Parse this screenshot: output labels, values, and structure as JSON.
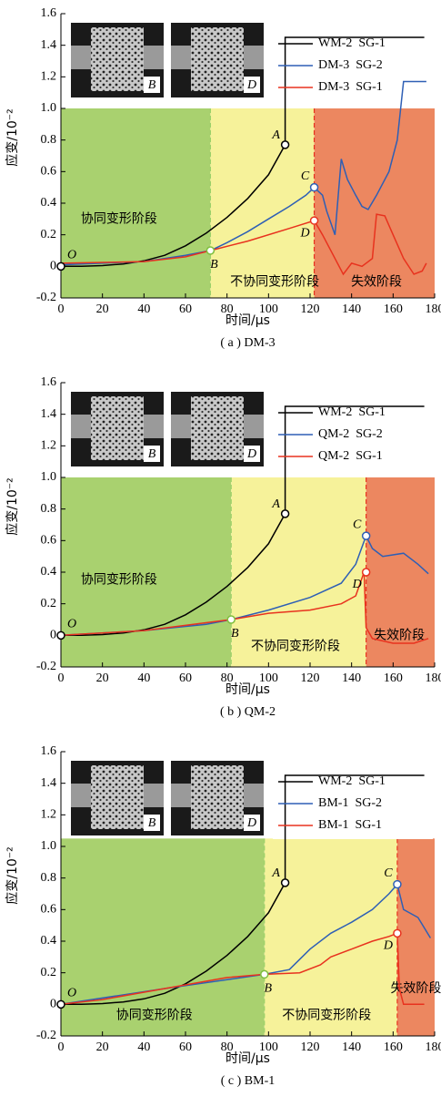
{
  "chart_data": [
    {
      "type": "line",
      "caption": "( a ) DM-3",
      "x_label": "时间/μs",
      "y_label": "应变/10⁻²",
      "xlim": [
        0,
        180
      ],
      "ylim": [
        -0.2,
        1.6
      ],
      "xticks": [
        0,
        20,
        40,
        60,
        80,
        100,
        120,
        140,
        160,
        180
      ],
      "yticks": [
        -0.2,
        0,
        0.2,
        0.4,
        0.6,
        0.8,
        {
          "value": 1,
          "label": "1.0"
        },
        1.2,
        1.4,
        1.6
      ],
      "region_top": 1.0,
      "regions": [
        {
          "label": "协同变形阶段",
          "x0": 0,
          "x1": 72,
          "color": "#a9d16f"
        },
        {
          "label": "不协同变形阶段",
          "x0": 72,
          "x1": 122,
          "color": "#f6f29a"
        },
        {
          "label": "失效阶段",
          "x0": 122,
          "x1": 180,
          "color": "#ec8760"
        }
      ],
      "inset_labels": [
        "B",
        "D"
      ],
      "series": [
        {
          "name": "WM-2  SG-1",
          "color": "#000000",
          "x": [
            0,
            10,
            20,
            30,
            40,
            50,
            60,
            70,
            80,
            90,
            100,
            108,
            108,
            175
          ],
          "values": [
            0,
            0,
            0.005,
            0.015,
            0.035,
            0.07,
            0.13,
            0.21,
            0.31,
            0.43,
            0.58,
            0.77,
            1.45,
            1.45
          ]
        },
        {
          "name": "DM-3  SG-2",
          "color": "#2e5fb5",
          "x": [
            0,
            40,
            60,
            72,
            80,
            90,
            100,
            110,
            118,
            122,
            126,
            128,
            132,
            135,
            138,
            142,
            145,
            148,
            152,
            158,
            162,
            165,
            176
          ],
          "values": [
            0.01,
            0.03,
            0.07,
            0.1,
            0.15,
            0.22,
            0.3,
            0.38,
            0.45,
            0.5,
            0.45,
            0.35,
            0.2,
            0.68,
            0.55,
            0.45,
            0.38,
            0.36,
            0.45,
            0.6,
            0.8,
            1.17,
            1.17
          ]
        },
        {
          "name": "DM-3  SG-1",
          "color": "#e8321e",
          "x": [
            0,
            40,
            60,
            72,
            90,
            110,
            122,
            126,
            132,
            136,
            140,
            145,
            150,
            152,
            156,
            160,
            165,
            170,
            174,
            176
          ],
          "values": [
            0.02,
            0.03,
            0.06,
            0.1,
            0.16,
            0.24,
            0.29,
            0.2,
            0.05,
            -0.05,
            0.02,
            0,
            0.05,
            0.33,
            0.32,
            0.2,
            0.05,
            -0.05,
            -0.03,
            0.02
          ]
        }
      ],
      "points": [
        {
          "label": "O",
          "x": 0,
          "y": 0,
          "color": "#000000"
        },
        {
          "label": "A",
          "x": 108,
          "y": 0.77,
          "color": "#000000"
        },
        {
          "label": "B",
          "x": 72,
          "y": 0.1,
          "color": "#7fbf3f"
        },
        {
          "label": "C",
          "x": 122,
          "y": 0.5,
          "color": "#2e5fb5"
        },
        {
          "label": "D",
          "x": 122,
          "y": 0.29,
          "color": "#e8321e"
        }
      ]
    },
    {
      "type": "line",
      "caption": "( b ) QM-2",
      "x_label": "时间/μs",
      "y_label": "应变/10⁻²",
      "xlim": [
        0,
        180
      ],
      "ylim": [
        -0.2,
        1.6
      ],
      "xticks": [
        0,
        20,
        40,
        60,
        80,
        100,
        120,
        140,
        160,
        180
      ],
      "yticks": [
        -0.2,
        0,
        0.2,
        0.4,
        0.6,
        0.8,
        {
          "value": 1,
          "label": "1.0"
        },
        1.2,
        1.4,
        1.6
      ],
      "region_top": 1.0,
      "regions": [
        {
          "label": "协同变形阶段",
          "x0": 0,
          "x1": 82,
          "color": "#a9d16f"
        },
        {
          "label": "不协同变形阶段",
          "x0": 82,
          "x1": 147,
          "color": "#f6f29a"
        },
        {
          "label": "失效阶段",
          "x0": 147,
          "x1": 180,
          "color": "#ec8760"
        }
      ],
      "inset_labels": [
        "B",
        "D"
      ],
      "series": [
        {
          "name": "WM-2  SG-1",
          "color": "#000000",
          "x": [
            0,
            10,
            20,
            30,
            40,
            50,
            60,
            70,
            80,
            90,
            100,
            108,
            108,
            175
          ],
          "values": [
            0,
            0,
            0.005,
            0.015,
            0.035,
            0.07,
            0.13,
            0.21,
            0.31,
            0.43,
            0.58,
            0.77,
            1.45,
            1.45
          ]
        },
        {
          "name": "QM-2  SG-2",
          "color": "#2e5fb5",
          "x": [
            0,
            40,
            70,
            82,
            100,
            120,
            135,
            142,
            147,
            150,
            155,
            165,
            172,
            177
          ],
          "values": [
            0,
            0.03,
            0.07,
            0.1,
            0.16,
            0.24,
            0.33,
            0.45,
            0.63,
            0.55,
            0.5,
            0.52,
            0.45,
            0.39
          ]
        },
        {
          "name": "QM-2  SG-1",
          "color": "#e8321e",
          "x": [
            0,
            40,
            82,
            100,
            120,
            135,
            142,
            146,
            147,
            150,
            160,
            170,
            177
          ],
          "values": [
            0,
            0.03,
            0.1,
            0.14,
            0.16,
            0.2,
            0.25,
            0.4,
            0.05,
            -0.02,
            -0.05,
            -0.05,
            -0.02
          ]
        }
      ],
      "points": [
        {
          "label": "O",
          "x": 0,
          "y": 0,
          "color": "#000000"
        },
        {
          "label": "A",
          "x": 108,
          "y": 0.77,
          "color": "#000000"
        },
        {
          "label": "B",
          "x": 82,
          "y": 0.1,
          "color": "#7fbf3f"
        },
        {
          "label": "C",
          "x": 147,
          "y": 0.63,
          "color": "#2e5fb5"
        },
        {
          "label": "D",
          "x": 147,
          "y": 0.4,
          "color": "#e8321e"
        }
      ]
    },
    {
      "type": "line",
      "caption": "( c ) BM-1",
      "x_label": "时间/μs",
      "y_label": "应变/10⁻²",
      "xlim": [
        0,
        180
      ],
      "ylim": [
        -0.2,
        1.6
      ],
      "xticks": [
        0,
        20,
        40,
        60,
        80,
        100,
        120,
        140,
        160,
        180
      ],
      "yticks": [
        -0.2,
        0,
        0.2,
        0.4,
        0.6,
        0.8,
        {
          "value": 1,
          "label": "1.0"
        },
        1.2,
        1.4,
        1.6
      ],
      "region_top": 1.05,
      "regions": [
        {
          "label": "协同变形阶段",
          "x0": 0,
          "x1": 98,
          "color": "#a9d16f"
        },
        {
          "label": "不协同变形阶段",
          "x0": 98,
          "x1": 162,
          "color": "#f6f29a"
        },
        {
          "label": "失效阶段",
          "x0": 162,
          "x1": 180,
          "color": "#ec8760"
        }
      ],
      "inset_labels": [
        "B",
        "D"
      ],
      "series": [
        {
          "name": "WM-2  SG-1",
          "color": "#000000",
          "x": [
            0,
            10,
            20,
            30,
            40,
            50,
            60,
            70,
            80,
            90,
            100,
            108,
            108,
            175
          ],
          "values": [
            0,
            0,
            0.005,
            0.015,
            0.035,
            0.07,
            0.13,
            0.21,
            0.31,
            0.43,
            0.58,
            0.77,
            1.45,
            1.45
          ]
        },
        {
          "name": "BM-1  SG-2",
          "color": "#2e5fb5",
          "x": [
            0,
            50,
            98,
            110,
            120,
            130,
            140,
            150,
            158,
            162,
            165,
            172,
            178
          ],
          "values": [
            0,
            0.1,
            0.19,
            0.22,
            0.35,
            0.45,
            0.52,
            0.6,
            0.7,
            0.76,
            0.6,
            0.55,
            0.42
          ]
        },
        {
          "name": "BM-1  SG-1",
          "color": "#e8321e",
          "x": [
            0,
            20,
            50,
            80,
            98,
            115,
            125,
            130,
            140,
            150,
            158,
            162,
            163,
            165,
            175
          ],
          "values": [
            0,
            0.03,
            0.1,
            0.17,
            0.19,
            0.2,
            0.25,
            0.3,
            0.35,
            0.4,
            0.43,
            0.45,
            0.1,
            0,
            0
          ]
        }
      ],
      "points": [
        {
          "label": "O",
          "x": 0,
          "y": 0,
          "color": "#000000"
        },
        {
          "label": "A",
          "x": 108,
          "y": 0.77,
          "color": "#000000"
        },
        {
          "label": "B",
          "x": 98,
          "y": 0.19,
          "color": "#7fbf3f"
        },
        {
          "label": "C",
          "x": 162,
          "y": 0.76,
          "color": "#2e5fb5"
        },
        {
          "label": "D",
          "x": 162,
          "y": 0.45,
          "color": "#e8321e"
        }
      ]
    }
  ]
}
